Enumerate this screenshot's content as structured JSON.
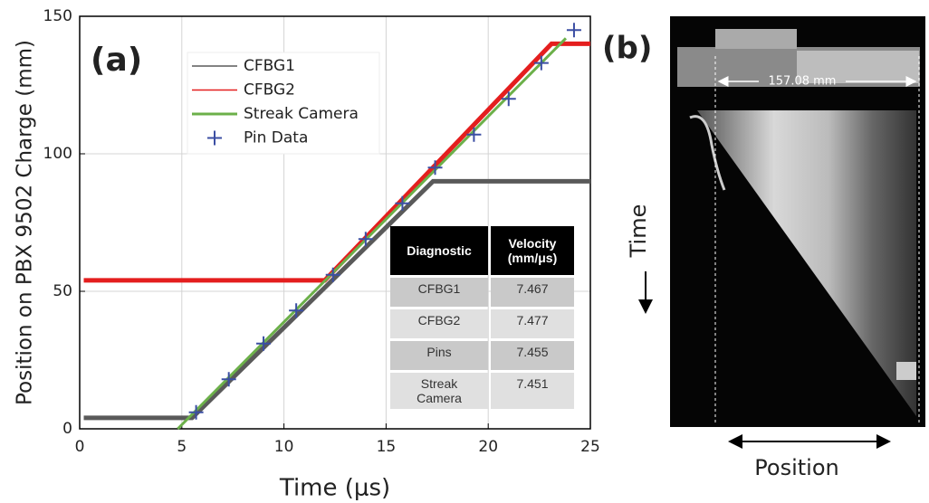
{
  "chart_data": {
    "type": "line",
    "x_label": "Time (μs)",
    "y_label": "Position on PBX 9502 Charge (mm)",
    "panel_label": "(a)",
    "xlim": [
      0,
      25
    ],
    "xticks": [
      0,
      5,
      10,
      15,
      20,
      25
    ],
    "ylim": [
      0,
      150
    ],
    "yticks": [
      0,
      50,
      100,
      150
    ],
    "grid": true,
    "legend": "upper left",
    "series": [
      {
        "name": "CFBG1",
        "color": "#5a5a5a",
        "style": "line",
        "x": [
          0.2,
          5.5,
          17.3,
          25
        ],
        "values": [
          4,
          4,
          90,
          90
        ]
      },
      {
        "name": "CFBG2",
        "color": "#e41e1e",
        "style": "line",
        "x": [
          0.2,
          12,
          23.1,
          25
        ],
        "values": [
          54,
          54,
          140,
          140
        ]
      },
      {
        "name": "Streak Camera",
        "color": "#6cb04a",
        "style": "line",
        "x": [
          4.8,
          23.8
        ],
        "values": [
          0,
          142
        ]
      },
      {
        "name": "Pin Data",
        "color": "#3b4ea3",
        "style": "marker",
        "x": [
          5.7,
          7.3,
          9.0,
          10.6,
          12.4,
          14.0,
          15.8,
          17.4,
          19.3,
          21.0,
          22.6,
          24.2
        ],
        "values": [
          6,
          18,
          31,
          43,
          56,
          69,
          82,
          95,
          107,
          120,
          133,
          145
        ]
      }
    ]
  },
  "table": {
    "columns": [
      "Diagnostic",
      "Velocity (mm/μs)"
    ],
    "rows": [
      [
        "CFBG1",
        "7.467"
      ],
      [
        "CFBG2",
        "7.477"
      ],
      [
        "Pins",
        "7.455"
      ],
      [
        "Streak Camera",
        "7.451"
      ]
    ]
  },
  "panel_b": {
    "label": "(b)",
    "scale_label": "157.08 mm",
    "time_label": "Time",
    "position_label": "Position"
  }
}
